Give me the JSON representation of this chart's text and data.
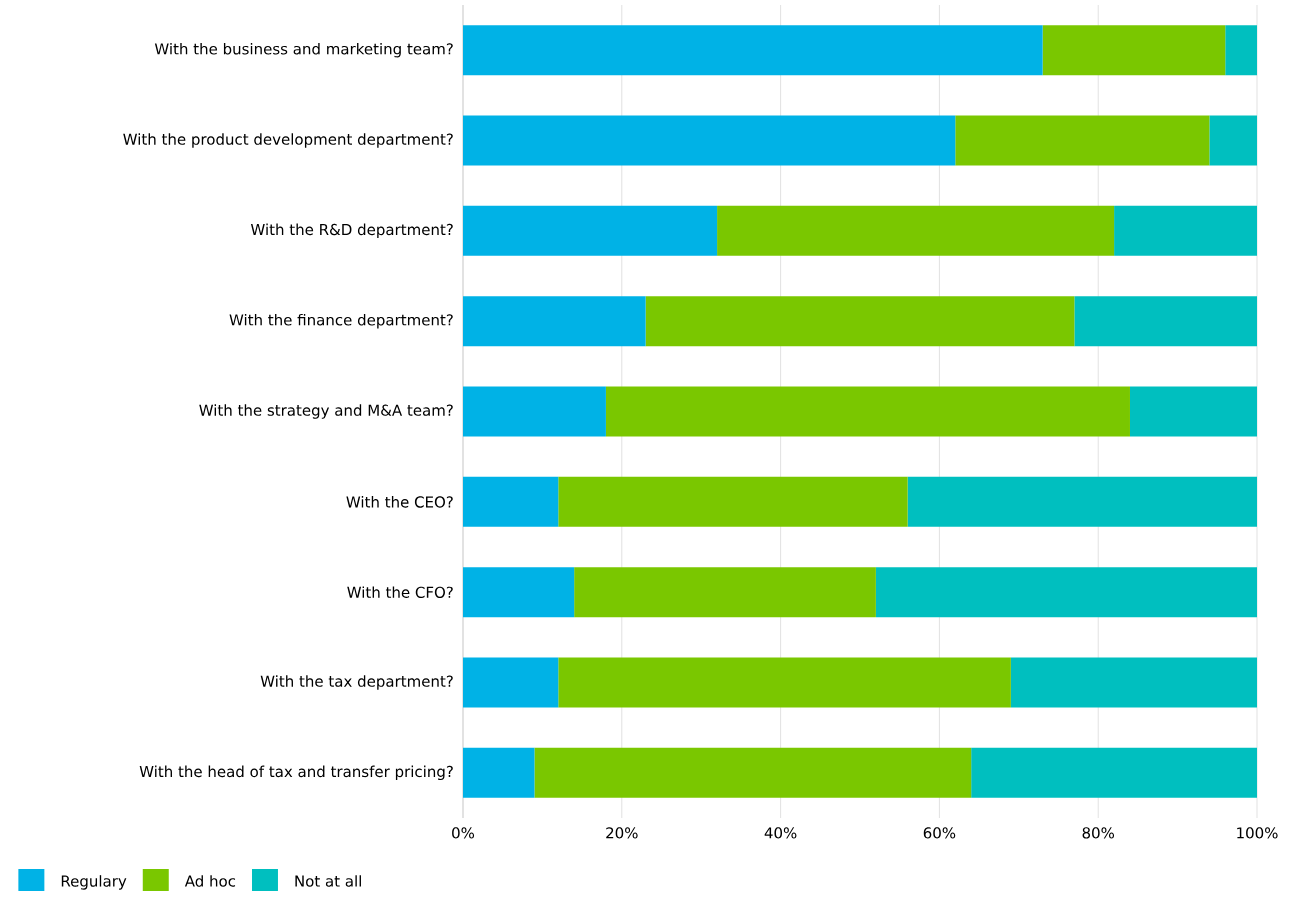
{
  "chart_data": {
    "type": "bar",
    "orientation": "horizontal",
    "stacked": true,
    "categories": [
      "With the business and marketing team?",
      "With the product development department?",
      "With the R&D department?",
      "With the finance department?",
      "With the strategy and M&A team?",
      "With the CEO?",
      "With the CFO?",
      "With the tax department?",
      "With the head of tax and transfer pricing?"
    ],
    "series": [
      {
        "name": "Regulary",
        "color": "#00b2e6",
        "values": [
          73,
          62,
          32,
          23,
          18,
          12,
          14,
          12,
          9
        ]
      },
      {
        "name": "Ad hoc",
        "color": "#7ac700",
        "values": [
          23,
          32,
          50,
          54,
          66,
          44,
          38,
          57,
          55
        ]
      },
      {
        "name": "Not at all",
        "color": "#00bfbf",
        "values": [
          4,
          6,
          18,
          23,
          16,
          44,
          48,
          31,
          36
        ]
      }
    ],
    "xlim": [
      0,
      100
    ],
    "xticks": [
      {
        "value": 0,
        "label": "0%"
      },
      {
        "value": 20,
        "label": "20%"
      },
      {
        "value": 40,
        "label": "40%"
      },
      {
        "value": 60,
        "label": "60%"
      },
      {
        "value": 80,
        "label": "80%"
      },
      {
        "value": 100,
        "label": "100%"
      }
    ],
    "grid": "x",
    "legend": "bottom left"
  }
}
